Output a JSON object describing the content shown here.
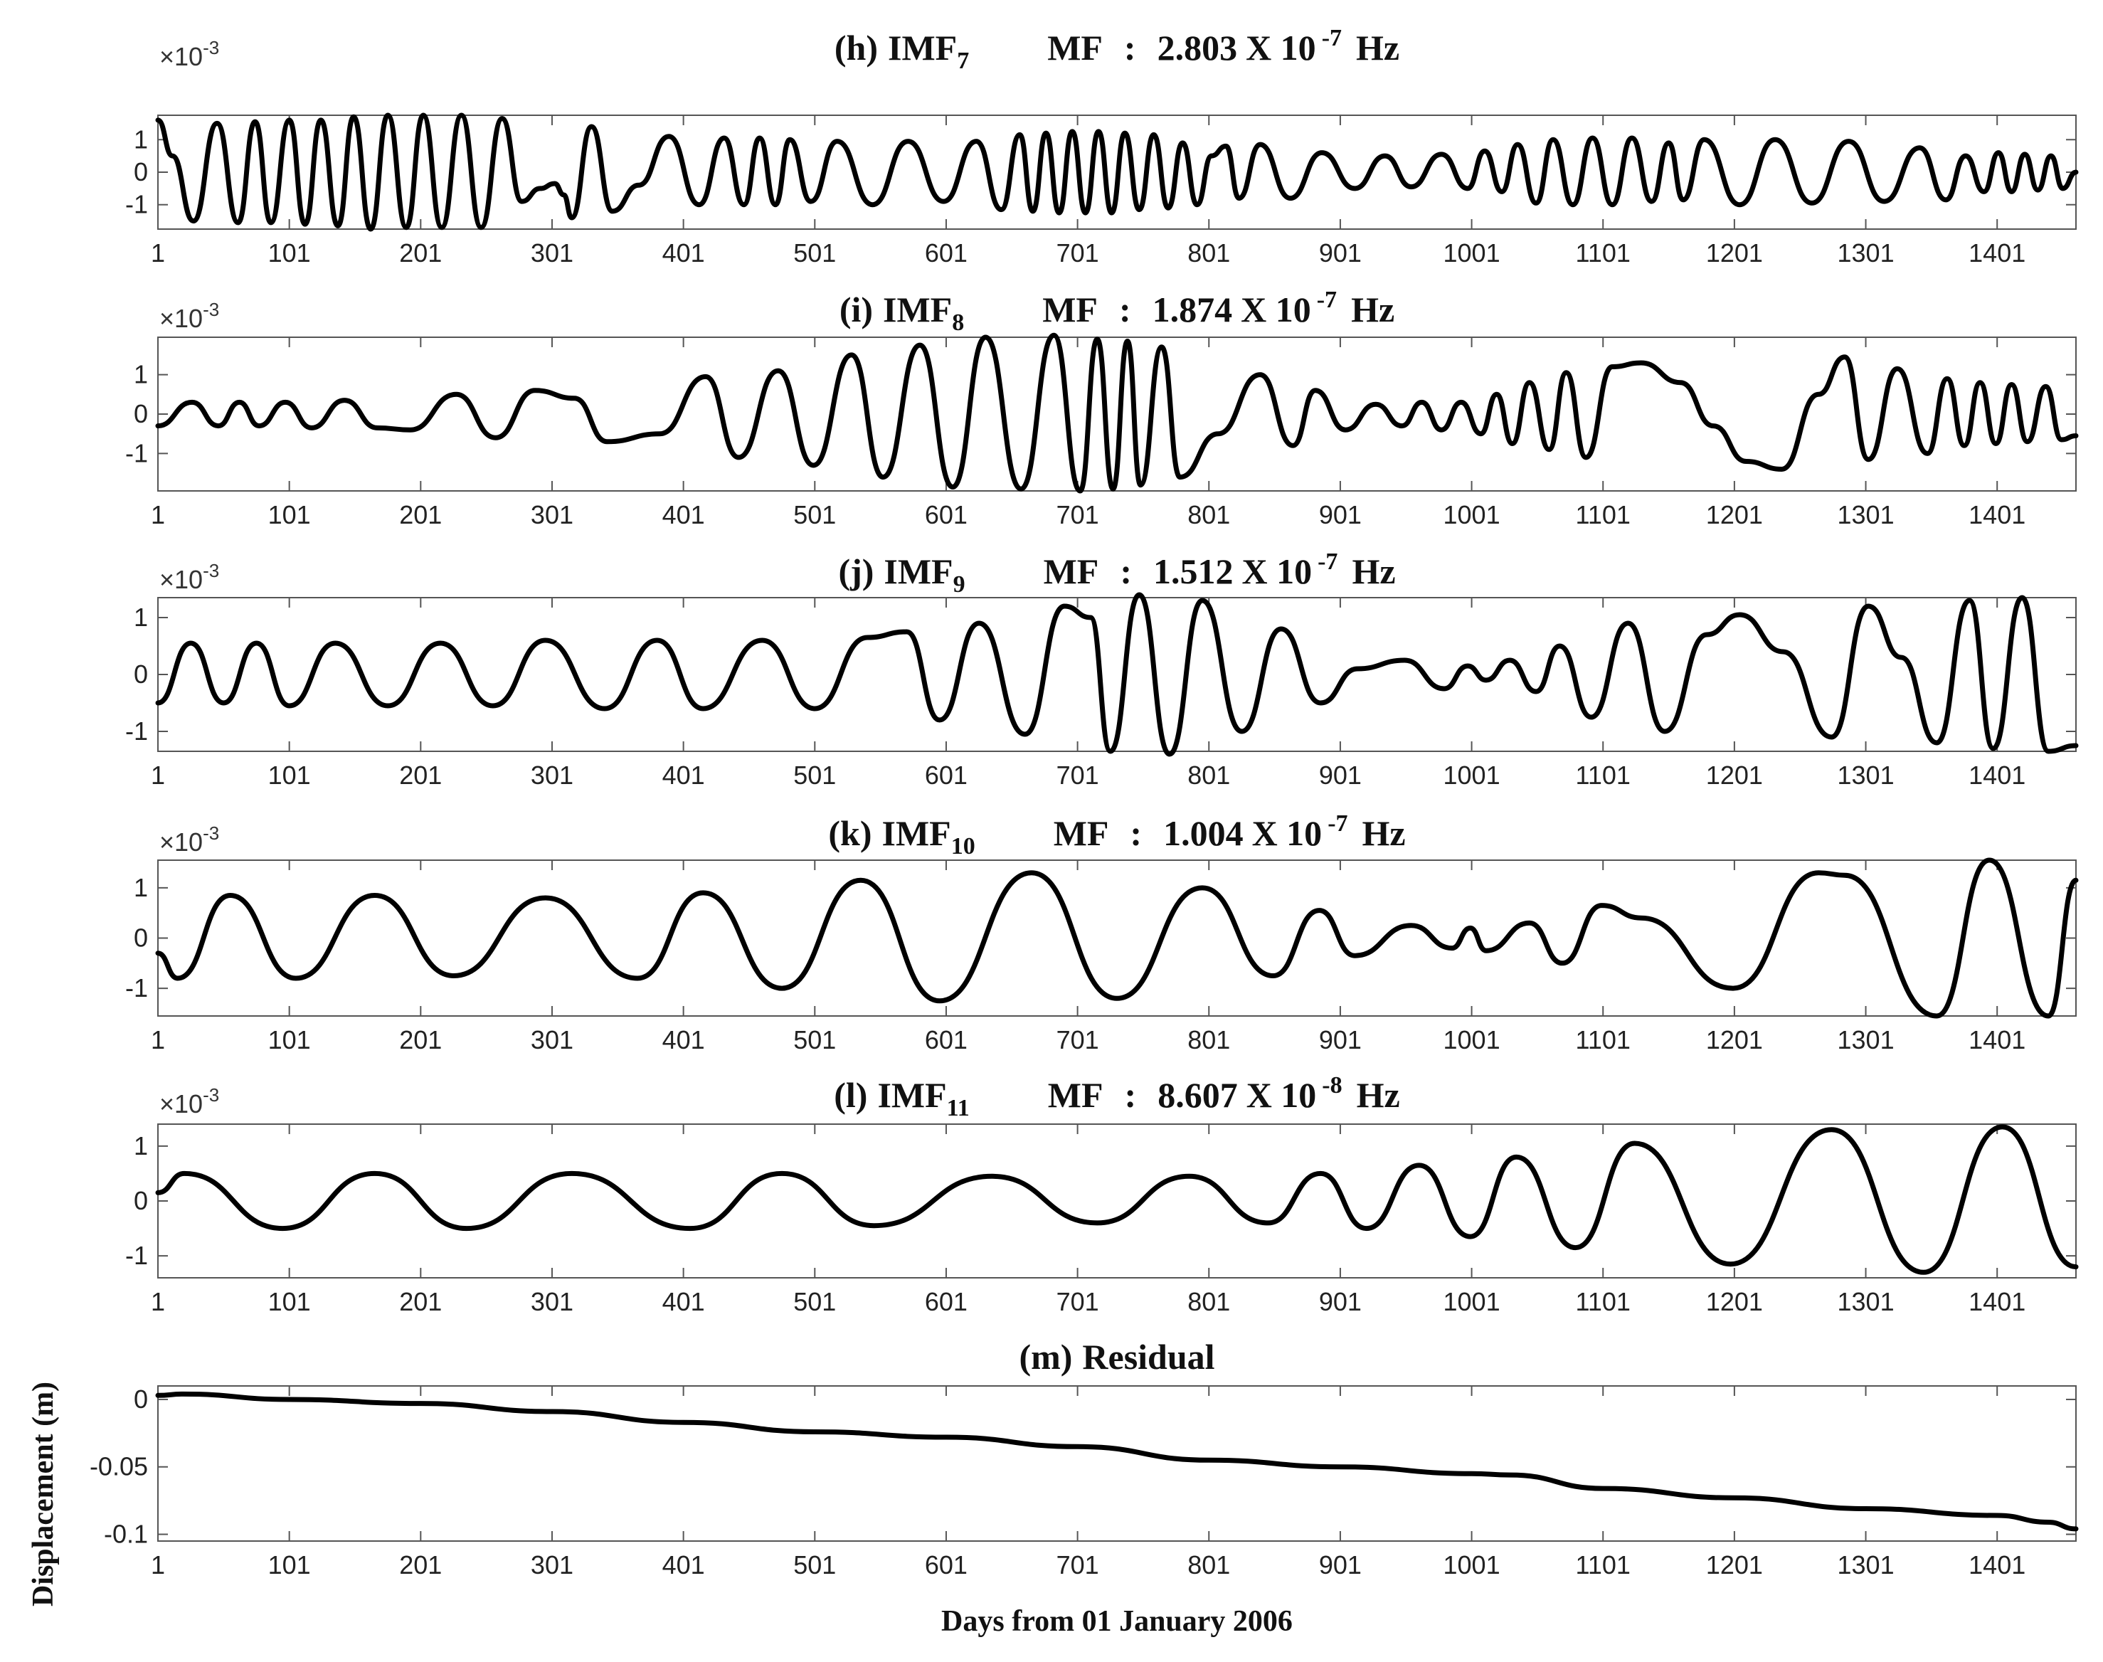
{
  "chart_data": [
    {
      "type": "line",
      "panel": "(h)",
      "component": "IMF",
      "index": "7",
      "mf_label": "MF",
      "mf_sep": ":",
      "mf_mantissa": "2.803",
      "mf_times": "X 10",
      "mf_exponent": "-7",
      "mf_unit": "Hz",
      "scale_base": "×10",
      "scale_exponent": "-3",
      "xlim": [
        1,
        1461
      ],
      "ylim": [
        -1.75,
        1.75
      ],
      "x_ticks": [
        "1",
        "101",
        "201",
        "301",
        "401",
        "501",
        "601",
        "701",
        "801",
        "901",
        "1001",
        "1101",
        "1201",
        "1301",
        "1401"
      ],
      "y_ticks": [
        "1",
        "0",
        "-1"
      ],
      "x": [
        1,
        12,
        28,
        46,
        62,
        75,
        87,
        101,
        113,
        125,
        138,
        150,
        163,
        176,
        190,
        203,
        217,
        232,
        247,
        263,
        278,
        292,
        303,
        310,
        316,
        331,
        347,
        367,
        390,
        413,
        432,
        447,
        459,
        471,
        482,
        498,
        518,
        545,
        572,
        599,
        624,
        643,
        657,
        667,
        677,
        687,
        697,
        707,
        717,
        727,
        737,
        748,
        759,
        770,
        781,
        792,
        803,
        814,
        824,
        840,
        863,
        887,
        912,
        935,
        955,
        978,
        998,
        1011,
        1024,
        1036,
        1050,
        1063,
        1078,
        1093,
        1108,
        1123,
        1138,
        1151,
        1162,
        1178,
        1205,
        1232,
        1260,
        1288,
        1315,
        1342,
        1362,
        1377,
        1391,
        1402,
        1412,
        1422,
        1432,
        1442,
        1451,
        1461
      ],
      "values": [
        1.6,
        0.5,
        -1.5,
        1.5,
        -1.55,
        1.55,
        -1.55,
        1.6,
        -1.6,
        1.6,
        -1.65,
        1.7,
        -1.75,
        1.75,
        -1.7,
        1.75,
        -1.7,
        1.75,
        -1.7,
        1.65,
        -0.9,
        -0.5,
        -0.35,
        -0.7,
        -1.4,
        1.4,
        -1.2,
        -0.4,
        1.1,
        -1.0,
        1.05,
        -1.0,
        1.05,
        -1.0,
        1.0,
        -0.9,
        0.95,
        -1.0,
        0.95,
        -0.9,
        0.95,
        -1.15,
        1.15,
        -1.2,
        1.2,
        -1.25,
        1.25,
        -1.25,
        1.25,
        -1.25,
        1.2,
        -1.15,
        1.15,
        -1.1,
        0.9,
        -1.0,
        0.5,
        0.8,
        -0.8,
        0.85,
        -0.8,
        0.6,
        -0.5,
        0.5,
        -0.45,
        0.55,
        -0.5,
        0.65,
        -0.6,
        0.85,
        -0.95,
        1.0,
        -1.0,
        1.05,
        -1.0,
        1.05,
        -0.9,
        0.9,
        -0.85,
        1.0,
        -1.0,
        1.0,
        -0.95,
        0.95,
        -0.9,
        0.75,
        -0.85,
        0.5,
        -0.6,
        0.6,
        -0.6,
        0.55,
        -0.55,
        0.5,
        -0.5,
        0.0
      ]
    },
    {
      "type": "line",
      "panel": "(i)",
      "component": "IMF",
      "index": "8",
      "mf_label": "MF",
      "mf_sep": ":",
      "mf_mantissa": "1.874",
      "mf_times": "X 10",
      "mf_exponent": "-7",
      "mf_unit": "Hz",
      "scale_base": "×10",
      "scale_exponent": "-3",
      "xlim": [
        1,
        1461
      ],
      "ylim": [
        -1.95,
        1.95
      ],
      "x_ticks": [
        "1",
        "101",
        "201",
        "301",
        "401",
        "501",
        "601",
        "701",
        "801",
        "901",
        "1001",
        "1101",
        "1201",
        "1301",
        "1401"
      ],
      "y_ticks": [
        "1",
        "0",
        "-1"
      ],
      "x": [
        1,
        27,
        47,
        63,
        78,
        98,
        118,
        143,
        168,
        193,
        228,
        258,
        288,
        318,
        343,
        383,
        418,
        443,
        473,
        500,
        529,
        553,
        581,
        606,
        631,
        658,
        683,
        703,
        716,
        728,
        739,
        749,
        765,
        779,
        808,
        840,
        865,
        882,
        905,
        928,
        948,
        963,
        978,
        993,
        1008,
        1020,
        1032,
        1045,
        1060,
        1073,
        1088,
        1108,
        1130,
        1160,
        1185,
        1210,
        1237,
        1265,
        1285,
        1303,
        1325,
        1348,
        1363,
        1376,
        1388,
        1400,
        1412,
        1424,
        1438,
        1450,
        1461
      ],
      "values": [
        -0.3,
        0.3,
        -0.3,
        0.3,
        -0.3,
        0.3,
        -0.35,
        0.35,
        -0.35,
        -0.4,
        0.5,
        -0.6,
        0.6,
        0.4,
        -0.7,
        -0.5,
        0.95,
        -1.1,
        1.1,
        -1.3,
        1.5,
        -1.6,
        1.75,
        -1.85,
        1.95,
        -1.9,
        2.0,
        -1.95,
        1.9,
        -1.9,
        1.85,
        -1.8,
        1.7,
        -1.6,
        -0.5,
        1.0,
        -0.8,
        0.6,
        -0.4,
        0.25,
        -0.3,
        0.3,
        -0.4,
        0.3,
        -0.5,
        0.5,
        -0.75,
        0.8,
        -0.9,
        1.05,
        -1.1,
        1.2,
        1.3,
        0.8,
        -0.3,
        -1.2,
        -1.4,
        0.5,
        1.45,
        -1.15,
        1.15,
        -1.0,
        0.9,
        -0.8,
        0.8,
        -0.75,
        0.75,
        -0.7,
        0.7,
        -0.65,
        -0.55
      ]
    },
    {
      "type": "line",
      "panel": "(j)",
      "component": "IMF",
      "index": "9",
      "mf_label": "MF",
      "mf_sep": ":",
      "mf_mantissa": "1.512",
      "mf_times": "X 10",
      "mf_exponent": "-7",
      "mf_unit": "Hz",
      "scale_base": "×10",
      "scale_exponent": "-3",
      "xlim": [
        1,
        1461
      ],
      "ylim": [
        -1.35,
        1.35
      ],
      "x_ticks": [
        "1",
        "101",
        "201",
        "301",
        "401",
        "501",
        "601",
        "701",
        "801",
        "901",
        "1001",
        "1101",
        "1201",
        "1301",
        "1401"
      ],
      "y_ticks": [
        "1",
        "0",
        "-1"
      ],
      "x": [
        1,
        26,
        51,
        76,
        101,
        136,
        176,
        216,
        256,
        296,
        341,
        381,
        416,
        461,
        501,
        541,
        571,
        596,
        626,
        661,
        691,
        711,
        726,
        748,
        771,
        796,
        826,
        856,
        886,
        914,
        950,
        980,
        998,
        1012,
        1030,
        1050,
        1068,
        1092,
        1120,
        1148,
        1180,
        1205,
        1238,
        1275,
        1303,
        1328,
        1355,
        1380,
        1398,
        1420,
        1440,
        1461
      ],
      "values": [
        -0.5,
        0.55,
        -0.5,
        0.55,
        -0.55,
        0.55,
        -0.55,
        0.55,
        -0.55,
        0.6,
        -0.6,
        0.6,
        -0.6,
        0.6,
        -0.6,
        0.65,
        0.75,
        -0.8,
        0.9,
        -1.05,
        1.2,
        1.0,
        -1.35,
        1.4,
        -1.4,
        1.3,
        -1.0,
        0.8,
        -0.5,
        0.1,
        0.25,
        -0.25,
        0.15,
        -0.1,
        0.25,
        -0.3,
        0.5,
        -0.75,
        0.9,
        -1.0,
        0.7,
        1.05,
        0.4,
        -1.1,
        1.2,
        0.3,
        -1.2,
        1.3,
        -1.3,
        1.35,
        -1.35,
        -1.25
      ]
    },
    {
      "type": "line",
      "panel": "(k)",
      "component": "IMF",
      "index": "10",
      "mf_label": "MF",
      "mf_sep": ":",
      "mf_mantissa": "1.004",
      "mf_times": "X 10",
      "mf_exponent": "-7",
      "mf_unit": "Hz",
      "scale_base": "×10",
      "scale_exponent": "-3",
      "xlim": [
        1,
        1461
      ],
      "ylim": [
        -1.55,
        1.55
      ],
      "x_ticks": [
        "1",
        "101",
        "201",
        "301",
        "401",
        "501",
        "601",
        "701",
        "801",
        "901",
        "1001",
        "1101",
        "1201",
        "1301",
        "1401"
      ],
      "y_ticks": [
        "1",
        "0",
        "-1"
      ],
      "x": [
        1,
        16,
        56,
        106,
        166,
        226,
        296,
        366,
        416,
        476,
        536,
        596,
        666,
        731,
        796,
        850,
        885,
        912,
        955,
        986,
        1000,
        1012,
        1045,
        1070,
        1100,
        1130,
        1200,
        1265,
        1285,
        1355,
        1395,
        1440,
        1461
      ],
      "values": [
        -0.3,
        -0.8,
        0.85,
        -0.8,
        0.85,
        -0.75,
        0.8,
        -0.8,
        0.9,
        -1.0,
        1.15,
        -1.25,
        1.3,
        -1.2,
        1.0,
        -0.75,
        0.55,
        -0.35,
        0.25,
        -0.2,
        0.2,
        -0.25,
        0.3,
        -0.5,
        0.65,
        0.4,
        -1.0,
        1.3,
        1.25,
        -1.55,
        1.55,
        -1.55,
        1.15
      ]
    },
    {
      "type": "line",
      "panel": "(l)",
      "component": "IMF",
      "index": "11",
      "mf_label": "MF",
      "mf_sep": ":",
      "mf_mantissa": "8.607",
      "mf_times": "X 10",
      "mf_exponent": "-8",
      "mf_unit": "Hz",
      "scale_base": "×10",
      "scale_exponent": "-3",
      "xlim": [
        1,
        1461
      ],
      "ylim": [
        -1.4,
        1.4
      ],
      "x_ticks": [
        "1",
        "101",
        "201",
        "301",
        "401",
        "501",
        "601",
        "701",
        "801",
        "901",
        "1001",
        "1101",
        "1201",
        "1301",
        "1401"
      ],
      "y_ticks": [
        "1",
        "0",
        "-1"
      ],
      "x": [
        1,
        21,
        96,
        166,
        236,
        316,
        406,
        476,
        546,
        636,
        716,
        786,
        846,
        886,
        921,
        961,
        1000,
        1035,
        1080,
        1125,
        1198,
        1275,
        1345,
        1405,
        1461
      ],
      "values": [
        0.15,
        0.5,
        -0.5,
        0.5,
        -0.5,
        0.5,
        -0.5,
        0.5,
        -0.45,
        0.45,
        -0.4,
        0.45,
        -0.4,
        0.5,
        -0.5,
        0.65,
        -0.65,
        0.8,
        -0.85,
        1.05,
        -1.15,
        1.3,
        -1.3,
        1.35,
        -1.2
      ]
    },
    {
      "type": "line",
      "panel": "(m)",
      "component": "Residual",
      "xlim": [
        1,
        1461
      ],
      "ylim": [
        -0.105,
        0.01
      ],
      "x_ticks": [
        "1",
        "101",
        "201",
        "301",
        "401",
        "501",
        "601",
        "701",
        "801",
        "901",
        "1001",
        "1101",
        "1201",
        "1301",
        "1401"
      ],
      "y_ticks": [
        "0",
        "-0.05",
        "-0.1"
      ],
      "ylabel": "Displacement (m)",
      "xlabel": "Days from 01 January 2006",
      "x": [
        1,
        20,
        101,
        201,
        301,
        401,
        501,
        601,
        701,
        801,
        901,
        1001,
        1030,
        1101,
        1201,
        1301,
        1401,
        1440,
        1461
      ],
      "values": [
        0.003,
        0.004,
        0.0,
        -0.003,
        -0.009,
        -0.017,
        -0.024,
        -0.028,
        -0.035,
        -0.045,
        -0.05,
        -0.055,
        -0.056,
        -0.066,
        -0.073,
        -0.081,
        -0.086,
        -0.091,
        -0.096
      ]
    }
  ]
}
